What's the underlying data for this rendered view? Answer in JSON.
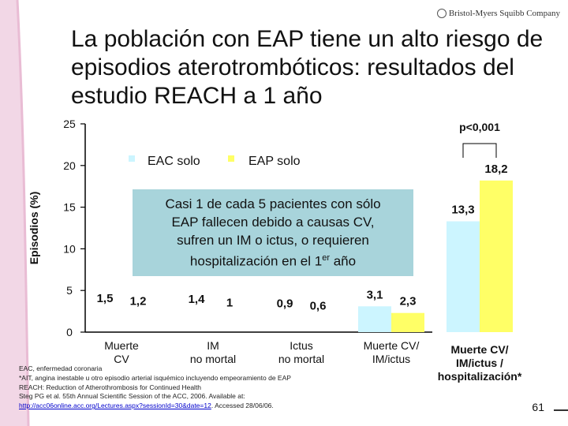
{
  "logo_text": "Bristol-Myers Squibb Company",
  "title": "La población con EAP tiene un alto riesgo de episodios aterotrombóticos: resultados del estudio REACH a 1 año",
  "callout": {
    "line1": "Casi 1 de cada 5 pacientes con sólo",
    "line2": "EAP fallecen debido a causas CV,",
    "line3": "sufren un IM o ictus, o requieren",
    "line4_pre": "hospitalización en el 1",
    "line4_sup": "er",
    "line4_post": " año"
  },
  "footnotes": {
    "line1": "EAC, enfermedad coronaria",
    "line2": "*AIT, angina inestable u otro episodio arterial isquémico incluyendo empeoramiento de EAP",
    "line3": "REACH: Reduction of Atherothrombosis for Continued Health",
    "line4": "Steg PG et al. 55th Annual Scientific Session of the ACC, 2006. Available at:",
    "link": "http://acc06online.acc.org/Lectures.aspx?sessionId=30&date=12",
    "line5_post": ". Accessed 28/06/06."
  },
  "page_number": "61",
  "chart_data": {
    "type": "bar",
    "ylabel": "Episodios (%)",
    "ylim": [
      0,
      25
    ],
    "yticks": [
      "0",
      "5",
      "10",
      "15",
      "20",
      "25"
    ],
    "categories": [
      "Muerte CV",
      "IM no mortal",
      "Ictus no mortal",
      "Muerte CV/ IM/ictus",
      "Muerte CV/ IM/ictus / hospitalización*"
    ],
    "category_lines": [
      [
        "Muerte",
        "CV"
      ],
      [
        "IM",
        "no mortal"
      ],
      [
        "Ictus",
        "no mortal"
      ],
      [
        "Muerte CV/",
        "IM/ictus"
      ],
      [
        "Muerte CV/",
        "IM/ictus /",
        "hospitalización*"
      ]
    ],
    "series": [
      {
        "name": "EAC solo",
        "color": "#ccf5ff",
        "values": [
          1.5,
          1.4,
          0.9,
          3.1,
          13.3
        ],
        "labels": [
          "1,5",
          "1,4",
          "0,9",
          "3,1",
          "13,3"
        ],
        "bars_drawn": [
          false,
          false,
          false,
          true,
          true
        ]
      },
      {
        "name": "EAP solo",
        "color": "#ffff66",
        "values": [
          1.2,
          1.0,
          0.6,
          2.3,
          18.2
        ],
        "labels": [
          "1,2",
          "1",
          "0,6",
          "2,3",
          "18,2"
        ],
        "bars_drawn": [
          false,
          false,
          false,
          true,
          true
        ]
      }
    ],
    "significance": "p<0,001",
    "grid": false,
    "legend": "top-center"
  }
}
